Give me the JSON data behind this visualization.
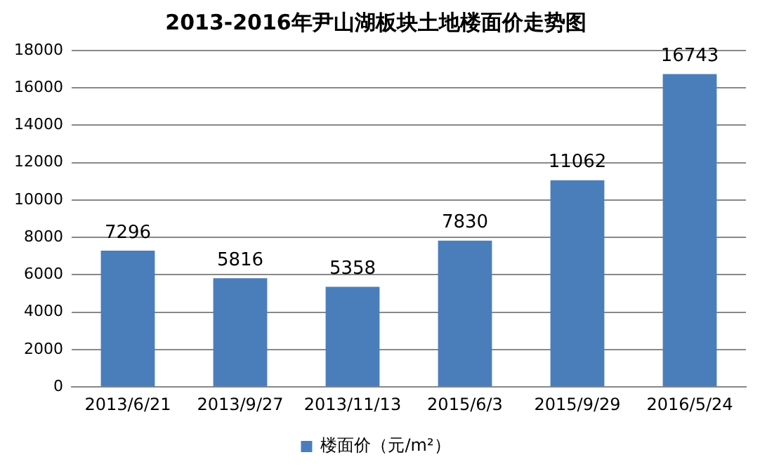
{
  "chart_data": {
    "type": "bar",
    "title": "2013-2016年尹山湖板块土地楼面价走势图",
    "categories": [
      "2013/6/21",
      "2013/9/27",
      "2013/11/13",
      "2015/6/3",
      "2015/9/29",
      "2016/5/24"
    ],
    "series": [
      {
        "name": "楼面价（元/m²）",
        "color": "#4a7ebb",
        "values": [
          7296,
          5816,
          5358,
          7830,
          11062,
          16743
        ]
      }
    ],
    "ylim": [
      0,
      18000
    ],
    "yticks": [
      0,
      2000,
      4000,
      6000,
      8000,
      10000,
      12000,
      14000,
      16000,
      18000
    ],
    "grid": "y",
    "legend": "bottom",
    "data_labels": true
  }
}
